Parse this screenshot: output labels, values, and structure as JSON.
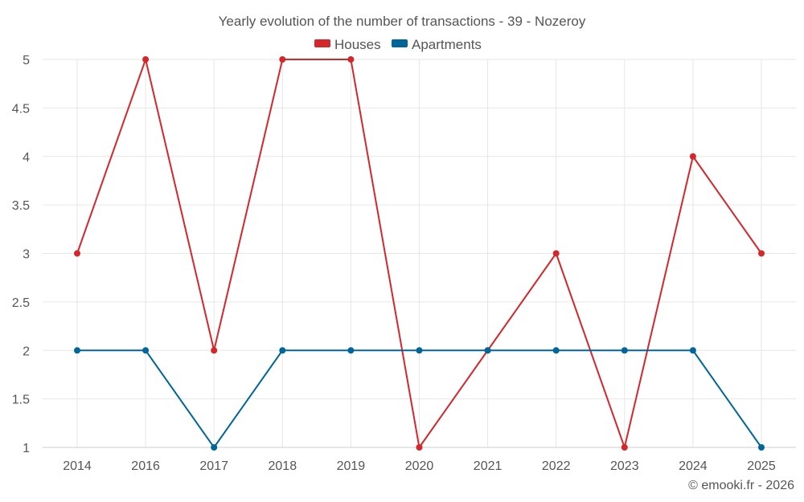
{
  "chart_data": {
    "type": "line",
    "title": "Yearly evolution of the number of transactions - 39 - Nozeroy",
    "categories": [
      "2014",
      "2016",
      "2017",
      "2018",
      "2019",
      "2020",
      "2021",
      "2022",
      "2023",
      "2024",
      "2025"
    ],
    "series": [
      {
        "name": "Houses",
        "color": "#d3272b",
        "values": [
          3,
          5,
          2,
          5,
          5,
          1,
          2,
          3,
          1,
          4,
          3
        ]
      },
      {
        "name": "Apartments",
        "color": "#006699",
        "values": [
          2,
          2,
          1,
          2,
          2,
          2,
          2,
          2,
          2,
          2,
          1
        ]
      }
    ],
    "ylim": [
      1,
      5
    ],
    "yticks": [
      "1",
      "1.5",
      "2",
      "2.5",
      "3",
      "3.5",
      "4",
      "4.5",
      "5"
    ],
    "xlabel": "",
    "ylabel": "",
    "grid": true,
    "legend": "top-center"
  },
  "credit": "© emooki.fr - 2026"
}
